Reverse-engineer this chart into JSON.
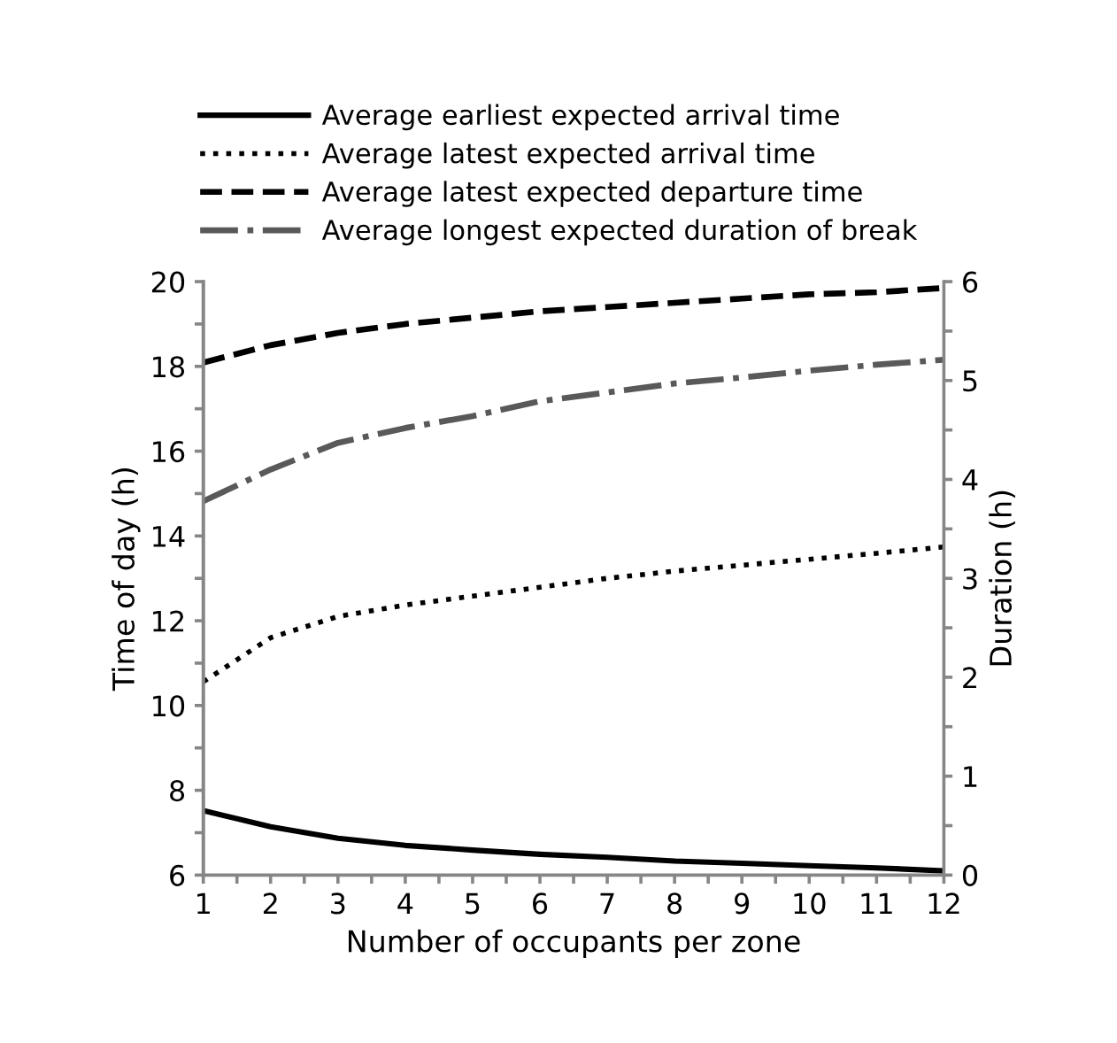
{
  "chart_data": {
    "type": "line",
    "xlabel": "Number of occupants per zone",
    "ylabel": "Time of day (h)",
    "y2label": "Duration (h)",
    "x": [
      1,
      2,
      3,
      4,
      5,
      6,
      7,
      8,
      9,
      10,
      11,
      12
    ],
    "series": [
      {
        "name": "Average earliest expected arrival time",
        "color": "#000000",
        "line_style": "solid",
        "values": [
          7.52,
          7.14,
          6.87,
          6.7,
          6.59,
          6.49,
          6.42,
          6.33,
          6.28,
          6.22,
          6.17,
          6.1
        ]
      },
      {
        "name": "Average latest expected arrival time",
        "color": "#000000",
        "line_style": "dotted",
        "values": [
          10.56,
          11.6,
          12.1,
          12.37,
          12.58,
          12.79,
          13.0,
          13.17,
          13.31,
          13.45,
          13.59,
          13.74
        ]
      },
      {
        "name": "Average latest expected departure time",
        "color": "#000000",
        "line_style": "dashed",
        "values": [
          18.09,
          18.5,
          18.79,
          19.0,
          19.15,
          19.3,
          19.4,
          19.5,
          19.6,
          19.7,
          19.75,
          19.85
        ]
      },
      {
        "name": "Average longest expected duration of break",
        "color": "#595959",
        "line_style": "dashdot",
        "axis": "y2",
        "values": [
          3.78,
          4.1,
          4.37,
          4.52,
          4.64,
          4.79,
          4.88,
          4.97,
          5.03,
          5.1,
          5.16,
          5.21
        ]
      }
    ],
    "xlim": [
      1,
      12
    ],
    "xticks": [
      1,
      {
        "value": 1.5,
        "label": null
      },
      2,
      {
        "value": 2.5,
        "label": null
      },
      3,
      {
        "value": 3.5,
        "label": null
      },
      4,
      {
        "value": 4.5,
        "label": null
      },
      5,
      {
        "value": 5.5,
        "label": null
      },
      6,
      {
        "value": 6.5,
        "label": null
      },
      7,
      {
        "value": 7.5,
        "label": null
      },
      8,
      {
        "value": 8.5,
        "label": null
      },
      9,
      {
        "value": 9.5,
        "label": null
      },
      10,
      {
        "value": 10.5,
        "label": null
      },
      11,
      {
        "value": 11.5,
        "label": null
      },
      12
    ],
    "ylim": [
      6,
      20
    ],
    "yticks": [
      6,
      {
        "value": 7,
        "label": null
      },
      8,
      {
        "value": 9,
        "label": null
      },
      10,
      {
        "value": 11,
        "label": null
      },
      12,
      {
        "value": 13,
        "label": null
      },
      14,
      {
        "value": 15,
        "label": null
      },
      16,
      {
        "value": 17,
        "label": null
      },
      18,
      {
        "value": 19,
        "label": null
      },
      20
    ],
    "y2lim": [
      0,
      6
    ],
    "y2ticks": [
      0,
      {
        "value": 0.5,
        "label": null
      },
      1,
      {
        "value": 1.5,
        "label": null
      },
      2,
      {
        "value": 2.5,
        "label": null
      },
      3,
      {
        "value": 3.5,
        "label": null
      },
      4,
      {
        "value": 4.5,
        "label": null
      },
      5,
      {
        "value": 5.5,
        "label": null
      },
      6
    ],
    "grid": false,
    "legend": "top",
    "marker": "none"
  }
}
